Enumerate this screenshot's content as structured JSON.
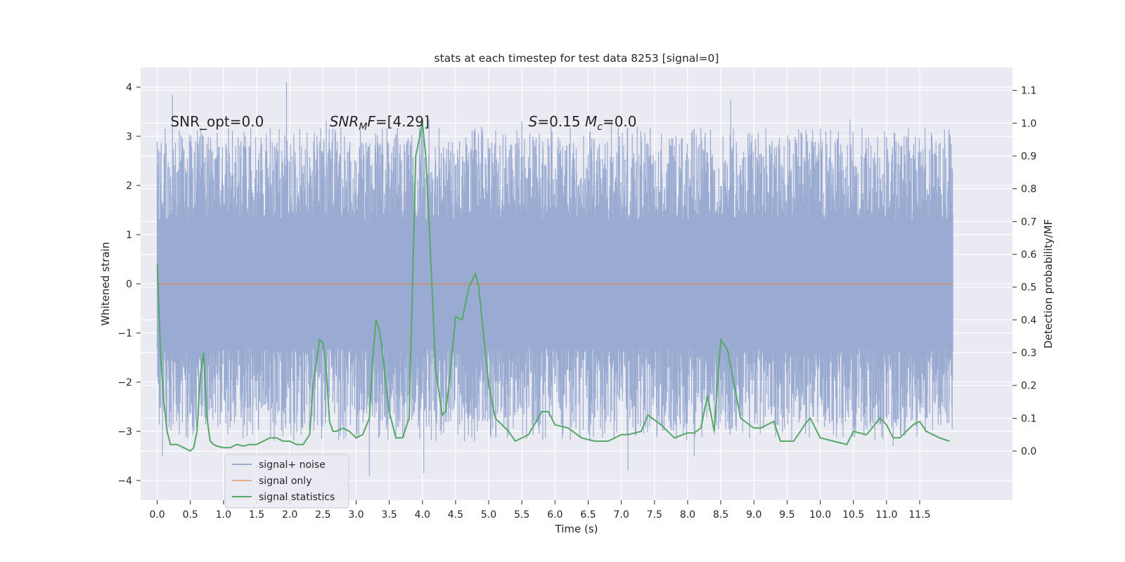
{
  "chart_data": {
    "type": "line",
    "title": "stats at each timestep for test data 8253 [signal=0]",
    "xlabel": "Time (s)",
    "ylabel": "Whitened strain",
    "y2label": "Detection probability/MF",
    "xlim": [
      -0.25,
      12.9
    ],
    "ylim": [
      -4.4,
      4.4
    ],
    "y2lim": [
      -0.15,
      1.17
    ],
    "xticks": [
      0.0,
      0.5,
      1.0,
      1.5,
      2.0,
      2.5,
      3.0,
      3.5,
      4.0,
      4.5,
      5.0,
      5.5,
      6.0,
      6.5,
      7.0,
      7.5,
      8.0,
      8.5,
      9.0,
      9.5,
      10.0,
      10.5,
      11.0,
      11.5
    ],
    "xtick_labels": [
      "0.0",
      "0.5",
      "1.0",
      "1.5",
      "2.0",
      "2.5",
      "3.0",
      "3.5",
      "4.0",
      "4.5",
      "5.0",
      "5.5",
      "6.0",
      "6.5",
      "7.0",
      "7.5",
      "8.0",
      "8.5",
      "9.0",
      "9.5",
      "10.0",
      "10.5",
      "11.0",
      "11.5"
    ],
    "yticks": [
      -4,
      -3,
      -2,
      -1,
      0,
      1,
      2,
      3,
      4
    ],
    "ytick_labels": [
      "−4",
      "−3",
      "−2",
      "−1",
      "0",
      "1",
      "2",
      "3",
      "4"
    ],
    "y2ticks": [
      0.0,
      0.1,
      0.2,
      0.3,
      0.4,
      0.5,
      0.6,
      0.7,
      0.8,
      0.9,
      1.0,
      1.1
    ],
    "y2tick_labels": [
      "0.0",
      "0.1",
      "0.2",
      "0.3",
      "0.4",
      "0.5",
      "0.6",
      "0.7",
      "0.8",
      "0.9",
      "1.0",
      "1.1"
    ],
    "grid": true,
    "legend_position": "lower-left",
    "annotations": [
      {
        "text": "SNR_opt=0.0",
        "x": 0.2,
        "y": 3.2
      },
      {
        "text": "SNR_MF=[4.29]",
        "x": 2.6,
        "y": 3.2
      },
      {
        "text": "S=0.15   M_c=0.0",
        "x": 5.6,
        "y": 3.2
      }
    ],
    "series": [
      {
        "name": "signal+ noise",
        "axis": "left",
        "color": "#9aabd1",
        "duration": 12.0,
        "core_amplitude": 1.3,
        "typical_peak": 2.3,
        "notable_peaks": [
          {
            "x": 0.23,
            "y": 3.85
          },
          {
            "x": 1.95,
            "y": 4.1
          },
          {
            "x": 2.55,
            "y": 3.3
          },
          {
            "x": 4.1,
            "y": 3.35
          },
          {
            "x": 5.5,
            "y": 3.3
          },
          {
            "x": 6.85,
            "y": 3.3
          },
          {
            "x": 8.65,
            "y": 3.75
          },
          {
            "x": 10.45,
            "y": 3.35
          },
          {
            "x": 11.3,
            "y": 3.0
          }
        ],
        "notable_troughs": [
          {
            "x": 0.08,
            "y": -3.5
          },
          {
            "x": 3.2,
            "y": -3.9
          },
          {
            "x": 4.02,
            "y": -3.85
          },
          {
            "x": 7.1,
            "y": -3.8
          },
          {
            "x": 8.1,
            "y": -3.5
          },
          {
            "x": 11.1,
            "y": -3.3
          }
        ]
      },
      {
        "name": "signal only",
        "axis": "left",
        "color": "#dd8452",
        "x": [
          0.0,
          12.0
        ],
        "y": [
          0.0,
          0.0
        ]
      },
      {
        "name": "signal statistics",
        "axis": "right",
        "color": "#55a868",
        "x": [
          0.0,
          0.05,
          0.1,
          0.15,
          0.2,
          0.3,
          0.4,
          0.5,
          0.55,
          0.6,
          0.65,
          0.7,
          0.75,
          0.8,
          0.85,
          0.9,
          1.0,
          1.1,
          1.2,
          1.3,
          1.4,
          1.5,
          1.6,
          1.7,
          1.8,
          1.9,
          2.0,
          2.1,
          2.2,
          2.3,
          2.35,
          2.45,
          2.5,
          2.55,
          2.6,
          2.65,
          2.7,
          2.8,
          2.9,
          3.0,
          3.1,
          3.2,
          3.25,
          3.3,
          3.35,
          3.4,
          3.45,
          3.5,
          3.6,
          3.7,
          3.8,
          3.85,
          3.9,
          4.0,
          4.05,
          4.1,
          4.2,
          4.3,
          4.35,
          4.4,
          4.5,
          4.6,
          4.65,
          4.7,
          4.8,
          4.85,
          4.9,
          5.0,
          5.1,
          5.3,
          5.4,
          5.6,
          5.8,
          5.9,
          6.0,
          6.2,
          6.4,
          6.6,
          6.8,
          7.0,
          7.1,
          7.3,
          7.4,
          7.6,
          7.8,
          8.0,
          8.1,
          8.2,
          8.3,
          8.4,
          8.5,
          8.6,
          8.8,
          9.0,
          9.1,
          9.3,
          9.4,
          9.6,
          9.8,
          9.85,
          10.0,
          10.2,
          10.4,
          10.5,
          10.7,
          10.9,
          11.0,
          11.1,
          11.2,
          11.4,
          11.5,
          11.6,
          11.7,
          11.8,
          11.95
        ],
        "y": [
          0.57,
          0.3,
          0.15,
          0.06,
          0.02,
          0.02,
          0.01,
          0.0,
          0.01,
          0.06,
          0.23,
          0.3,
          0.1,
          0.03,
          0.02,
          0.015,
          0.01,
          0.01,
          0.02,
          0.015,
          0.02,
          0.02,
          0.03,
          0.04,
          0.04,
          0.03,
          0.03,
          0.02,
          0.02,
          0.05,
          0.2,
          0.34,
          0.33,
          0.25,
          0.09,
          0.06,
          0.06,
          0.07,
          0.06,
          0.04,
          0.05,
          0.1,
          0.28,
          0.4,
          0.37,
          0.3,
          0.2,
          0.12,
          0.04,
          0.04,
          0.1,
          0.5,
          0.9,
          1.0,
          0.9,
          0.7,
          0.25,
          0.11,
          0.12,
          0.2,
          0.41,
          0.4,
          0.45,
          0.5,
          0.54,
          0.5,
          0.4,
          0.2,
          0.1,
          0.06,
          0.03,
          0.05,
          0.12,
          0.12,
          0.08,
          0.07,
          0.04,
          0.03,
          0.03,
          0.05,
          0.05,
          0.06,
          0.11,
          0.08,
          0.04,
          0.055,
          0.055,
          0.07,
          0.17,
          0.06,
          0.34,
          0.31,
          0.1,
          0.07,
          0.07,
          0.09,
          0.03,
          0.03,
          0.09,
          0.1,
          0.04,
          0.03,
          0.02,
          0.06,
          0.05,
          0.1,
          0.08,
          0.04,
          0.04,
          0.08,
          0.09,
          0.06,
          0.05,
          0.04,
          0.03
        ]
      }
    ]
  }
}
